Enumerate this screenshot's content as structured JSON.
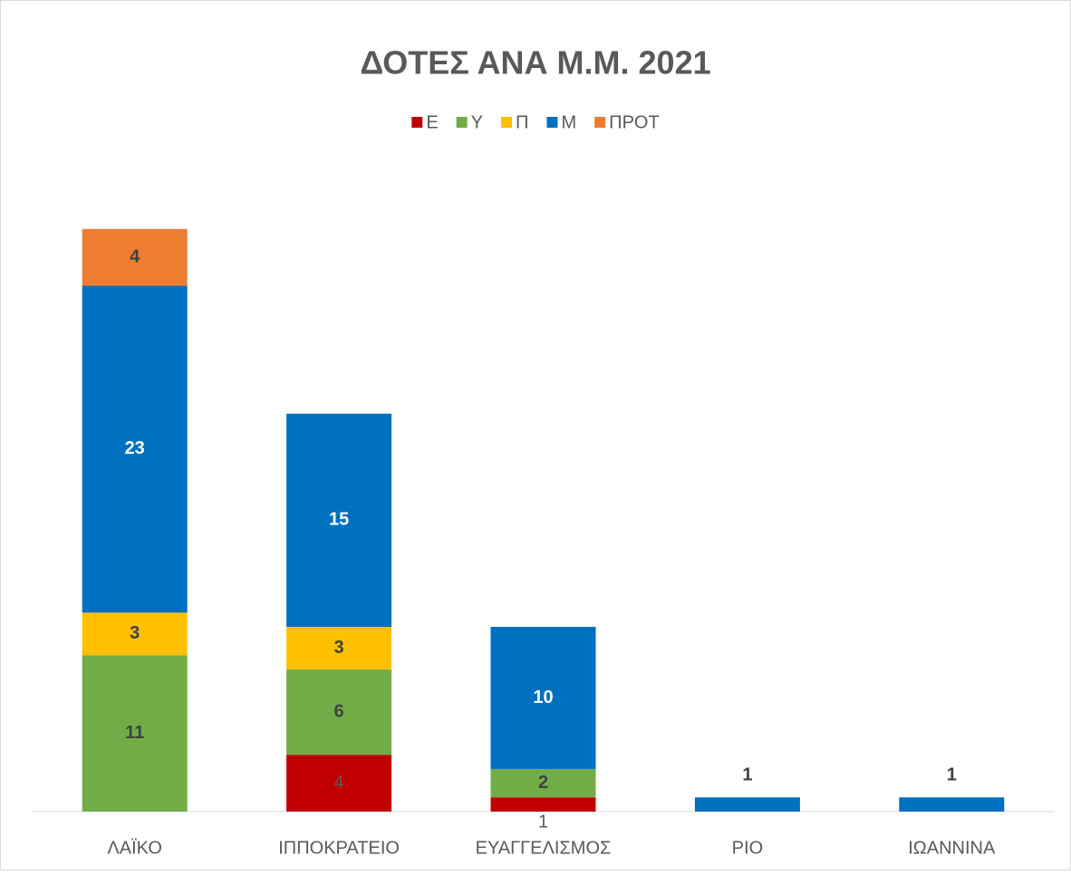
{
  "chart_data": {
    "type": "stacked_bar",
    "title": "ΔΟΤΕΣ ΑΝΑ Μ.Μ. 2021",
    "categories": [
      "ΛΑΪΚΟ",
      "ΙΠΠΟΚΡΑΤΕΙΟ",
      "ΕΥΑΓΓΕΛΙΣΜΟΣ",
      "ΡΙΟ",
      "ΙΩΑΝΝΙΝΑ"
    ],
    "series": [
      {
        "name": "Ε",
        "color": "#c00000",
        "values": [
          null,
          4,
          1,
          null,
          null
        ]
      },
      {
        "name": "Υ",
        "color": "#70ad47",
        "values": [
          11,
          6,
          2,
          null,
          null
        ]
      },
      {
        "name": "Π",
        "color": "#ffc000",
        "values": [
          3,
          3,
          null,
          null,
          null
        ]
      },
      {
        "name": "Μ",
        "color": "#0070c0",
        "values": [
          23,
          15,
          10,
          1,
          1
        ]
      },
      {
        "name": "ΠΡΟΤ",
        "color": "#ed7d31",
        "values": [
          4,
          null,
          null,
          null,
          null
        ]
      }
    ],
    "ylim": [
      0,
      45
    ],
    "legend": "top"
  }
}
